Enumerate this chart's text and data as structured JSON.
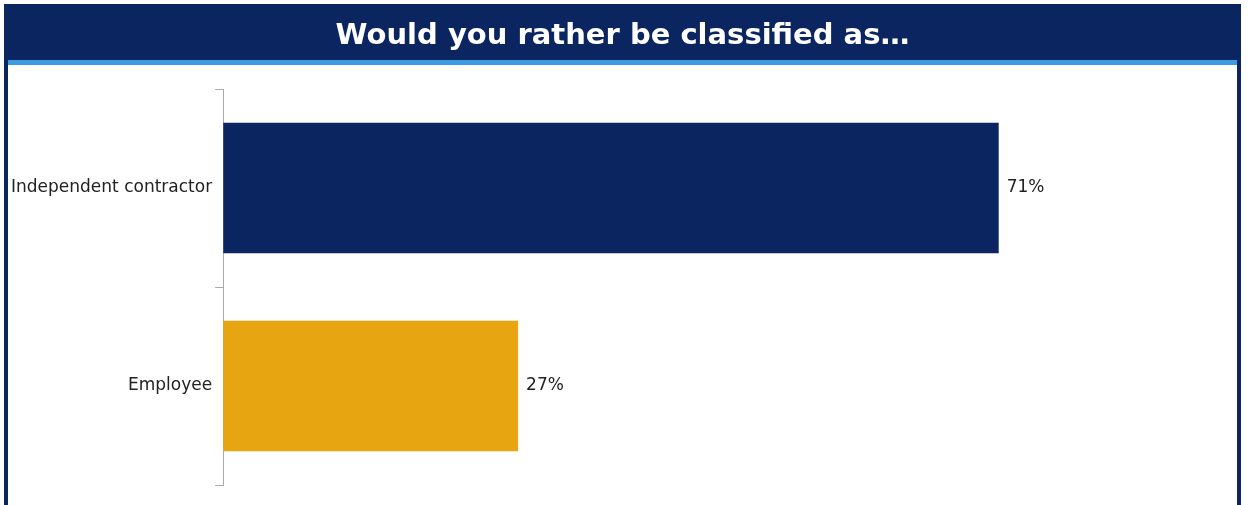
{
  "chart_data": {
    "type": "bar",
    "orientation": "horizontal",
    "title": "Would you rather be classified as…",
    "categories": [
      "Independent contractor",
      "Employee"
    ],
    "values": [
      71,
      27
    ],
    "colors": [
      "#0a2560",
      "#e8a512"
    ],
    "value_labels": [
      "71%",
      "27%"
    ],
    "legend": false
  }
}
